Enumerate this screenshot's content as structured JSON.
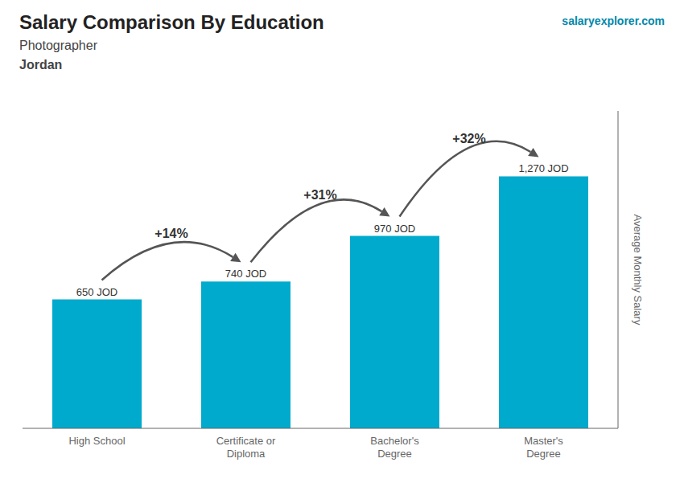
{
  "chart_data": {
    "type": "bar",
    "title": "Salary Comparison By Education",
    "subtitle": [
      "Photographer",
      "Jordan"
    ],
    "ylabel": "Average Monthly Salary",
    "categories": [
      "High School",
      "Certificate or\nDiploma",
      "Bachelor's\nDegree",
      "Master's\nDegree"
    ],
    "values": [
      650,
      740,
      970,
      1270
    ],
    "value_labels": [
      "650 JOD",
      "740 JOD",
      "970 JOD",
      "1,270 JOD"
    ],
    "data_labels": true,
    "color": "#00aacc",
    "ylim": [
      0,
      1600
    ],
    "tick_labels": "x",
    "grid": false,
    "annotations": [
      "+14%",
      "+31%",
      "+32%",
      "salaryexplorer.com"
    ]
  }
}
